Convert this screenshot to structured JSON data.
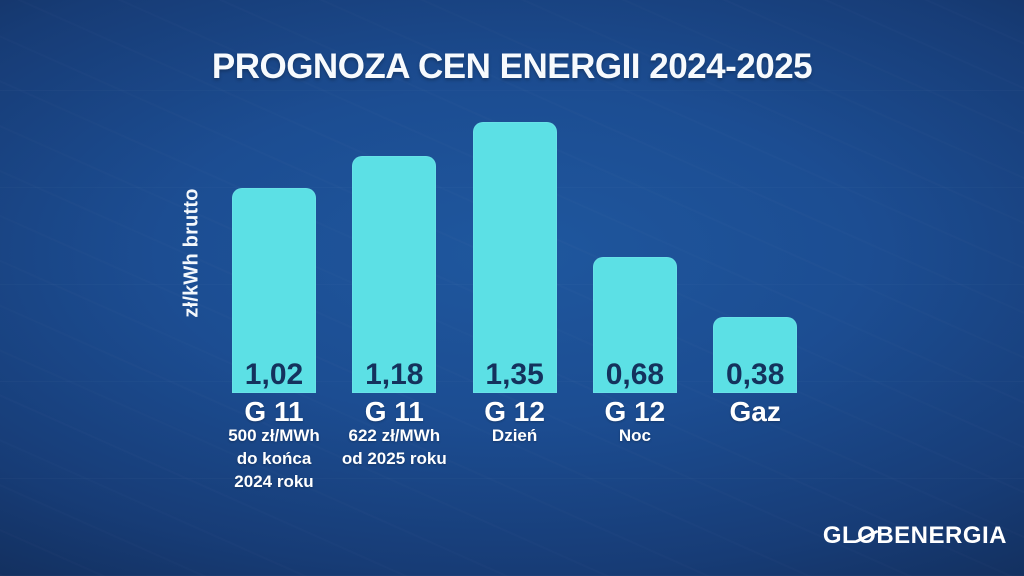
{
  "chart_data": {
    "type": "bar",
    "title": "PROGNOZA CEN ENERGII 2024-2025",
    "ylabel": "zł/kWh brutto",
    "xlabel": "",
    "ylim": [
      0,
      1.45
    ],
    "grid": false,
    "legend": "none",
    "categories": [
      "G 11",
      "G 11",
      "G 12",
      "G 12",
      "Gaz"
    ],
    "sublabels": [
      [
        "500 zł/MWh",
        "do końca",
        "2024 roku"
      ],
      [
        "622 zł/MWh",
        "od 2025 roku"
      ],
      [
        "Dzień"
      ],
      [
        "Noc"
      ],
      []
    ],
    "values": [
      1.02,
      1.18,
      1.35,
      0.68,
      0.38
    ],
    "value_labels": [
      "1,02",
      "1,18",
      "1,35",
      "0,68",
      "0,38"
    ],
    "colors": {
      "bar": "#5ce0e5",
      "value_text": "#14325d",
      "label_text": "#ffffff",
      "background_center": "#1f579e",
      "background_edge": "#0d1d3c"
    }
  },
  "logo": {
    "pre": "GL",
    "o": "O",
    "post": "BENERGIA"
  }
}
